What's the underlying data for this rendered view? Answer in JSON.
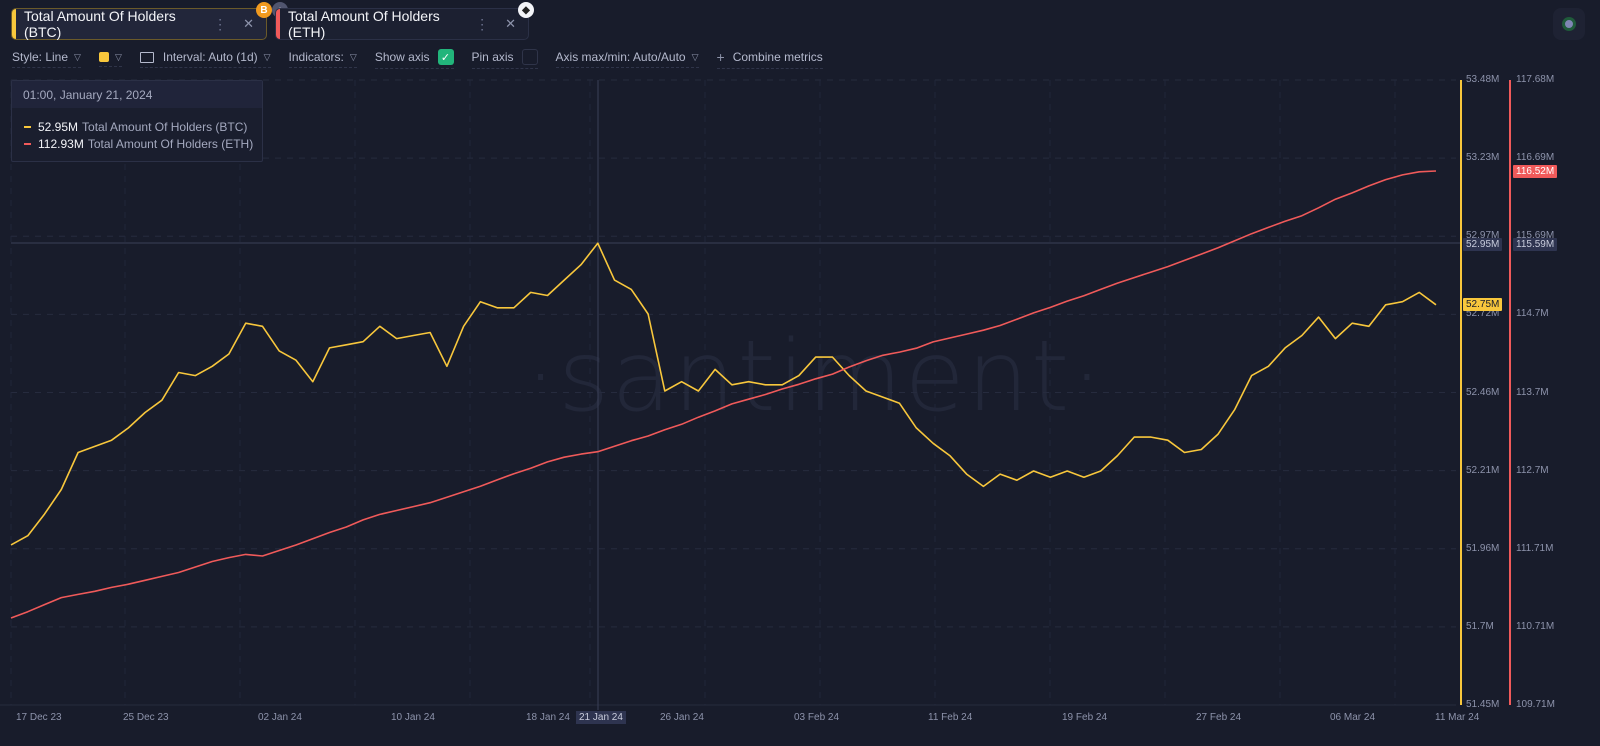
{
  "tabs": [
    {
      "label": "Total Amount Of Holders (BTC)",
      "color": "#f8c73c",
      "badge": "B",
      "badge_icon": "bitcoin-icon"
    },
    {
      "label": "Total Amount Of Holders (ETH)",
      "color": "#f05a5a",
      "badge_icon": "ethereum-icon"
    }
  ],
  "toolbar": {
    "style_label": "Style: Line",
    "interval_label": "Interval: Auto (1d)",
    "indicators_label": "Indicators:",
    "show_axis_label": "Show axis",
    "show_axis_checked": true,
    "pin_axis_label": "Pin axis",
    "pin_axis_checked": false,
    "axis_minmax_label": "Axis max/min: Auto/Auto",
    "combine_label": "Combine metrics",
    "check_glyph": "✓",
    "chevron_glyph": "⌵",
    "plus_glyph": "+"
  },
  "tooltip": {
    "date": "01:00, January 21, 2024",
    "rows": [
      {
        "value": "52.95M",
        "name": "Total Amount Of Holders (BTC)",
        "color": "#f8c73c"
      },
      {
        "value": "112.93M",
        "name": "Total Amount Of Holders (ETH)",
        "color": "#f05a5a"
      }
    ]
  },
  "watermark": "·santiment·",
  "chart_data": {
    "type": "line",
    "title": "",
    "xlabel": "",
    "ylabel": "",
    "x_tick_labels": [
      "17 Dec 23",
      "25 Dec 23",
      "02 Jan 24",
      "10 Jan 24",
      "18 Jan 24",
      "21 Jan 24",
      "26 Jan 24",
      "03 Feb 24",
      "11 Feb 24",
      "19 Feb 24",
      "27 Feb 24",
      "06 Mar 24",
      "11 Mar 24"
    ],
    "x_range": [
      "15 Dec 23",
      "11 Mar 24"
    ],
    "grid": true,
    "crosshair": {
      "x_label": "21 Jan 24",
      "btc_value": "52.95M",
      "eth_value": "115.59M"
    },
    "axes": [
      {
        "series": "BTC",
        "side": "right",
        "color": "#f8c73c",
        "ticks": [
          "53.48M",
          "53.23M",
          "52.97M",
          "52.72M",
          "52.46M",
          "52.21M",
          "51.96M",
          "51.7M",
          "51.45M"
        ],
        "range": [
          51.45,
          53.48
        ],
        "last_value_tag": "52.75M"
      },
      {
        "series": "ETH",
        "side": "right",
        "color": "#f05a5a",
        "ticks": [
          "117.68M",
          "116.69M",
          "115.69M",
          "114.7M",
          "113.7M",
          "112.7M",
          "111.71M",
          "110.71M",
          "109.71M"
        ],
        "range": [
          109.71,
          117.68
        ],
        "last_value_tag": "116.52M"
      }
    ],
    "series": [
      {
        "name": "Total Amount Of Holders (BTC)",
        "unit": "M",
        "color": "#f8c73c",
        "values": [
          51.97,
          52.0,
          52.07,
          52.15,
          52.27,
          52.29,
          52.31,
          52.35,
          52.4,
          52.44,
          52.53,
          52.52,
          52.55,
          52.59,
          52.69,
          52.68,
          52.6,
          52.57,
          52.5,
          52.61,
          52.62,
          52.63,
          52.68,
          52.64,
          52.65,
          52.66,
          52.55,
          52.68,
          52.76,
          52.74,
          52.74,
          52.79,
          52.78,
          52.83,
          52.88,
          52.95,
          52.83,
          52.8,
          52.72,
          52.47,
          52.5,
          52.47,
          52.54,
          52.49,
          52.5,
          52.49,
          52.49,
          52.52,
          52.58,
          52.58,
          52.52,
          52.47,
          52.45,
          52.43,
          52.35,
          52.3,
          52.26,
          52.2,
          52.16,
          52.2,
          52.18,
          52.21,
          52.19,
          52.21,
          52.19,
          52.21,
          52.26,
          52.32,
          52.32,
          52.31,
          52.27,
          52.28,
          52.33,
          52.41,
          52.52,
          52.55,
          52.61,
          52.65,
          52.71,
          52.64,
          52.69,
          52.68,
          52.75,
          52.76,
          52.79,
          52.75
        ]
      },
      {
        "name": "Total Amount Of Holders (ETH)",
        "unit": "M",
        "color": "#f05a5a",
        "values": [
          110.82,
          110.9,
          110.99,
          111.08,
          111.12,
          111.16,
          111.21,
          111.25,
          111.3,
          111.35,
          111.4,
          111.47,
          111.54,
          111.59,
          111.63,
          111.61,
          111.68,
          111.75,
          111.83,
          111.91,
          111.98,
          112.07,
          112.14,
          112.19,
          112.24,
          112.29,
          112.36,
          112.43,
          112.5,
          112.58,
          112.66,
          112.73,
          112.81,
          112.87,
          112.91,
          112.94,
          113.01,
          113.08,
          113.14,
          113.22,
          113.29,
          113.38,
          113.46,
          113.55,
          113.61,
          113.67,
          113.74,
          113.8,
          113.87,
          113.93,
          114.02,
          114.1,
          114.17,
          114.21,
          114.26,
          114.34,
          114.39,
          114.44,
          114.49,
          114.55,
          114.63,
          114.71,
          114.78,
          114.86,
          114.93,
          115.01,
          115.09,
          115.16,
          115.23,
          115.3,
          115.38,
          115.46,
          115.54,
          115.63,
          115.72,
          115.8,
          115.88,
          115.95,
          116.05,
          116.16,
          116.24,
          116.33,
          116.41,
          116.47,
          116.51,
          116.52
        ]
      }
    ]
  }
}
